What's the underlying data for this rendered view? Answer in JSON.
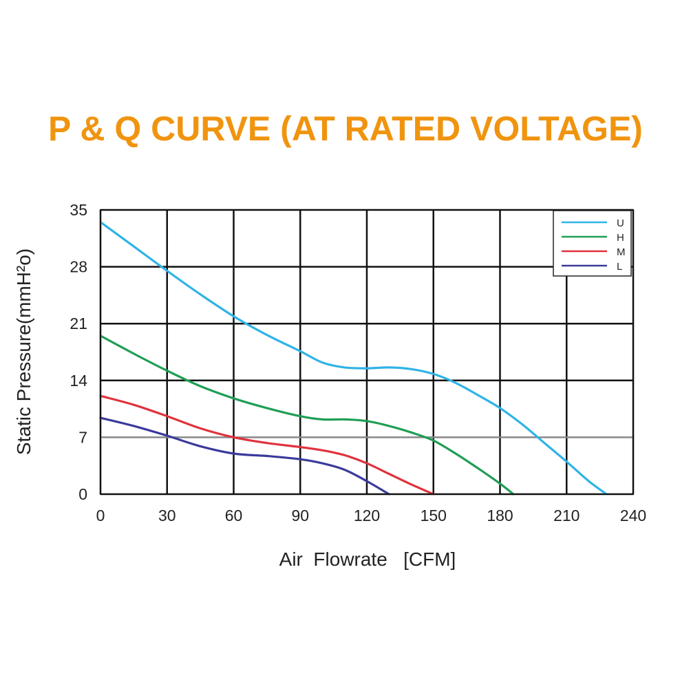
{
  "colors": {
    "title": "#f0940f",
    "grid_major": "#111111",
    "grid_minor": "#888888",
    "U": "#2fb3e6",
    "H": "#1f9e55",
    "M": "#e0323c",
    "L": "#3b3a9c"
  },
  "chart_data": {
    "type": "line",
    "title": "P & Q CURVE (AT RATED VOLTAGE)",
    "xlabel": "Air  Flowrate   [CFM]",
    "ylabel": "Static Pressure(mmH²o)",
    "xlim": [
      0,
      240
    ],
    "ylim": [
      0,
      35
    ],
    "xticks": [
      "0",
      "30",
      "60",
      "90",
      "120",
      "150",
      "180",
      "210",
      "240"
    ],
    "yticks": [
      "0",
      "7",
      "14",
      "21",
      "28",
      "35"
    ],
    "xtick_values": [
      0,
      30,
      60,
      90,
      120,
      150,
      180,
      210,
      240
    ],
    "ytick_values": [
      0,
      7,
      14,
      21,
      28,
      35
    ],
    "grid": true,
    "legend_position": "top-right",
    "series": [
      {
        "name": "U",
        "x": [
          0,
          15,
          30,
          45,
          60,
          75,
          90,
          100,
          110,
          120,
          130,
          140,
          150,
          160,
          170,
          180,
          190,
          200,
          210,
          220,
          228
        ],
        "y": [
          33.5,
          30.5,
          27.5,
          24.6,
          21.9,
          19.6,
          17.6,
          16.2,
          15.6,
          15.5,
          15.6,
          15.4,
          14.8,
          13.7,
          12.2,
          10.6,
          8.6,
          6.3,
          4.0,
          1.6,
          0
        ]
      },
      {
        "name": "H",
        "x": [
          0,
          15,
          30,
          45,
          60,
          75,
          90,
          100,
          110,
          120,
          130,
          140,
          150,
          160,
          170,
          180,
          186
        ],
        "y": [
          19.5,
          17.3,
          15.2,
          13.3,
          11.8,
          10.6,
          9.6,
          9.2,
          9.2,
          9.0,
          8.4,
          7.6,
          6.6,
          5.0,
          3.2,
          1.3,
          0
        ]
      },
      {
        "name": "M",
        "x": [
          0,
          15,
          30,
          45,
          60,
          75,
          90,
          100,
          110,
          120,
          130,
          140,
          150
        ],
        "y": [
          12.1,
          11.0,
          9.6,
          8.1,
          7.0,
          6.3,
          5.8,
          5.4,
          4.8,
          3.8,
          2.5,
          1.2,
          0
        ]
      },
      {
        "name": "L",
        "x": [
          0,
          15,
          30,
          45,
          60,
          75,
          90,
          100,
          110,
          120,
          130
        ],
        "y": [
          9.4,
          8.4,
          7.2,
          5.9,
          5.0,
          4.7,
          4.3,
          3.8,
          3.0,
          1.6,
          0
        ]
      }
    ]
  }
}
